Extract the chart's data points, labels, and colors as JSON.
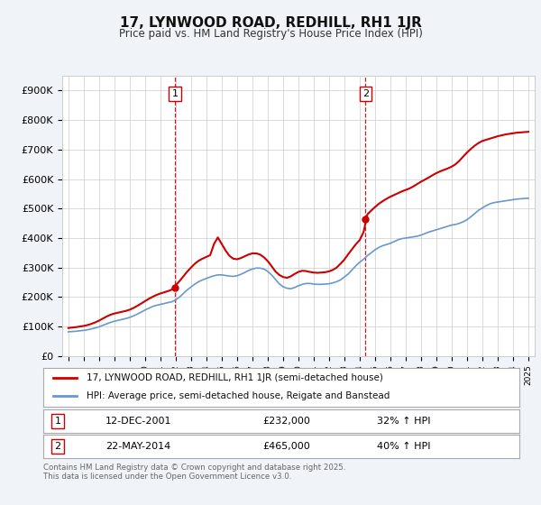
{
  "title": "17, LYNWOOD ROAD, REDHILL, RH1 1JR",
  "subtitle": "Price paid vs. HM Land Registry's House Price Index (HPI)",
  "ylabel_ticks": [
    "£0",
    "£100K",
    "£200K",
    "£300K",
    "£400K",
    "£500K",
    "£600K",
    "£700K",
    "£800K",
    "£900K"
  ],
  "ytick_values": [
    0,
    100000,
    200000,
    300000,
    400000,
    500000,
    600000,
    700000,
    800000,
    900000
  ],
  "ylim": [
    0,
    950000
  ],
  "sale1_year": 2001.95,
  "sale1_price": 232000,
  "sale1_label": "1",
  "sale1_date": "12-DEC-2001",
  "sale1_pct": "32%",
  "sale2_year": 2014.38,
  "sale2_price": 465000,
  "sale2_label": "2",
  "sale2_date": "22-MAY-2014",
  "sale2_pct": "40%",
  "line_color_property": "#cc0000",
  "line_color_hpi": "#6699cc",
  "vline_color": "#cc0000",
  "background_color": "#f0f4f8",
  "plot_bg_color": "#ffffff",
  "grid_color": "#cccccc",
  "legend_label_property": "17, LYNWOOD ROAD, REDHILL, RH1 1JR (semi-detached house)",
  "legend_label_hpi": "HPI: Average price, semi-detached house, Reigate and Banstead",
  "footer": "Contains HM Land Registry data © Crown copyright and database right 2025.\nThis data is licensed under the Open Government Licence v3.0.",
  "hpi_years": [
    1995.0,
    1995.25,
    1995.5,
    1995.75,
    1996.0,
    1996.25,
    1996.5,
    1996.75,
    1997.0,
    1997.25,
    1997.5,
    1997.75,
    1998.0,
    1998.25,
    1998.5,
    1998.75,
    1999.0,
    1999.25,
    1999.5,
    1999.75,
    2000.0,
    2000.25,
    2000.5,
    2000.75,
    2001.0,
    2001.25,
    2001.5,
    2001.75,
    2002.0,
    2002.25,
    2002.5,
    2002.75,
    2003.0,
    2003.25,
    2003.5,
    2003.75,
    2004.0,
    2004.25,
    2004.5,
    2004.75,
    2005.0,
    2005.25,
    2005.5,
    2005.75,
    2006.0,
    2006.25,
    2006.5,
    2006.75,
    2007.0,
    2007.25,
    2007.5,
    2007.75,
    2008.0,
    2008.25,
    2008.5,
    2008.75,
    2009.0,
    2009.25,
    2009.5,
    2009.75,
    2010.0,
    2010.25,
    2010.5,
    2010.75,
    2011.0,
    2011.25,
    2011.5,
    2011.75,
    2012.0,
    2012.25,
    2012.5,
    2012.75,
    2013.0,
    2013.25,
    2013.5,
    2013.75,
    2014.0,
    2014.25,
    2014.5,
    2014.75,
    2015.0,
    2015.25,
    2015.5,
    2015.75,
    2016.0,
    2016.25,
    2016.5,
    2016.75,
    2017.0,
    2017.25,
    2017.5,
    2017.75,
    2018.0,
    2018.25,
    2018.5,
    2018.75,
    2019.0,
    2019.25,
    2019.5,
    2019.75,
    2020.0,
    2020.25,
    2020.5,
    2020.75,
    2021.0,
    2021.25,
    2021.5,
    2021.75,
    2022.0,
    2022.25,
    2022.5,
    2022.75,
    2023.0,
    2023.25,
    2023.5,
    2023.75,
    2024.0,
    2024.25,
    2024.5,
    2024.75,
    2025.0
  ],
  "hpi_values": [
    82000,
    83000,
    84000,
    85500,
    87000,
    89000,
    92000,
    95000,
    99000,
    104000,
    109000,
    114000,
    118000,
    121000,
    124000,
    127000,
    131000,
    136000,
    142000,
    149000,
    156000,
    162000,
    168000,
    172000,
    175000,
    178000,
    181000,
    184000,
    190000,
    200000,
    212000,
    224000,
    234000,
    244000,
    252000,
    258000,
    263000,
    268000,
    272000,
    275000,
    275000,
    273000,
    271000,
    270000,
    272000,
    277000,
    283000,
    290000,
    295000,
    298000,
    298000,
    295000,
    287000,
    275000,
    260000,
    245000,
    235000,
    230000,
    228000,
    232000,
    238000,
    243000,
    246000,
    246000,
    244000,
    243000,
    243000,
    244000,
    245000,
    248000,
    252000,
    258000,
    268000,
    278000,
    292000,
    306000,
    318000,
    328000,
    340000,
    350000,
    360000,
    368000,
    374000,
    378000,
    382000,
    388000,
    394000,
    398000,
    400000,
    402000,
    404000,
    406000,
    410000,
    415000,
    420000,
    424000,
    428000,
    432000,
    436000,
    440000,
    444000,
    446000,
    450000,
    455000,
    462000,
    472000,
    483000,
    494000,
    502000,
    510000,
    516000,
    520000,
    522000,
    524000,
    526000,
    528000,
    530000,
    532000,
    533000,
    534000,
    535000
  ],
  "prop_years": [
    1995.0,
    1995.25,
    1995.5,
    1995.75,
    1996.0,
    1996.25,
    1996.5,
    1996.75,
    1997.0,
    1997.25,
    1997.5,
    1997.75,
    1998.0,
    1998.25,
    1998.5,
    1998.75,
    1999.0,
    1999.25,
    1999.5,
    1999.75,
    2000.0,
    2000.25,
    2000.5,
    2000.75,
    2001.0,
    2001.25,
    2001.5,
    2001.75,
    2002.0,
    2002.25,
    2002.5,
    2002.75,
    2003.0,
    2003.25,
    2003.5,
    2003.75,
    2004.0,
    2004.25,
    2004.5,
    2004.75,
    2005.0,
    2005.25,
    2005.5,
    2005.75,
    2006.0,
    2006.25,
    2006.5,
    2006.75,
    2007.0,
    2007.25,
    2007.5,
    2007.75,
    2008.0,
    2008.25,
    2008.5,
    2008.75,
    2009.0,
    2009.25,
    2009.5,
    2009.75,
    2010.0,
    2010.25,
    2010.5,
    2010.75,
    2011.0,
    2011.25,
    2011.5,
    2011.75,
    2012.0,
    2012.25,
    2012.5,
    2012.75,
    2013.0,
    2013.25,
    2013.5,
    2013.75,
    2014.0,
    2014.25,
    2014.5,
    2014.75,
    2015.0,
    2015.25,
    2015.5,
    2015.75,
    2016.0,
    2016.25,
    2016.5,
    2016.75,
    2017.0,
    2017.25,
    2017.5,
    2017.75,
    2018.0,
    2018.25,
    2018.5,
    2018.75,
    2019.0,
    2019.25,
    2019.5,
    2019.75,
    2020.0,
    2020.25,
    2020.5,
    2020.75,
    2021.0,
    2021.25,
    2021.5,
    2021.75,
    2022.0,
    2022.25,
    2022.5,
    2022.75,
    2023.0,
    2023.25,
    2023.5,
    2023.75,
    2024.0,
    2024.25,
    2024.5,
    2024.75,
    2025.0
  ],
  "prop_values": [
    95000,
    96500,
    98000,
    100000,
    102000,
    105000,
    109000,
    114000,
    120000,
    127000,
    134000,
    140000,
    144000,
    147000,
    150000,
    153000,
    157000,
    163000,
    170000,
    178000,
    186000,
    194000,
    201000,
    207000,
    212000,
    216000,
    220000,
    225000,
    240000,
    254000,
    270000,
    286000,
    300000,
    313000,
    323000,
    330000,
    336000,
    342000,
    380000,
    402000,
    380000,
    358000,
    340000,
    330000,
    328000,
    332000,
    338000,
    344000,
    348000,
    348000,
    344000,
    335000,
    322000,
    305000,
    287000,
    275000,
    268000,
    265000,
    270000,
    278000,
    285000,
    289000,
    288000,
    285000,
    283000,
    282000,
    283000,
    284000,
    287000,
    292000,
    300000,
    313000,
    327000,
    345000,
    362000,
    379000,
    393000,
    420000,
    480000,
    493000,
    505000,
    516000,
    525000,
    533000,
    540000,
    546000,
    552000,
    558000,
    563000,
    568000,
    575000,
    583000,
    591000,
    598000,
    605000,
    613000,
    620000,
    626000,
    631000,
    636000,
    642000,
    650000,
    662000,
    676000,
    690000,
    702000,
    713000,
    722000,
    729000,
    733000,
    737000,
    741000,
    745000,
    748000,
    751000,
    753000,
    755000,
    757000,
    758000,
    759000,
    760000
  ]
}
